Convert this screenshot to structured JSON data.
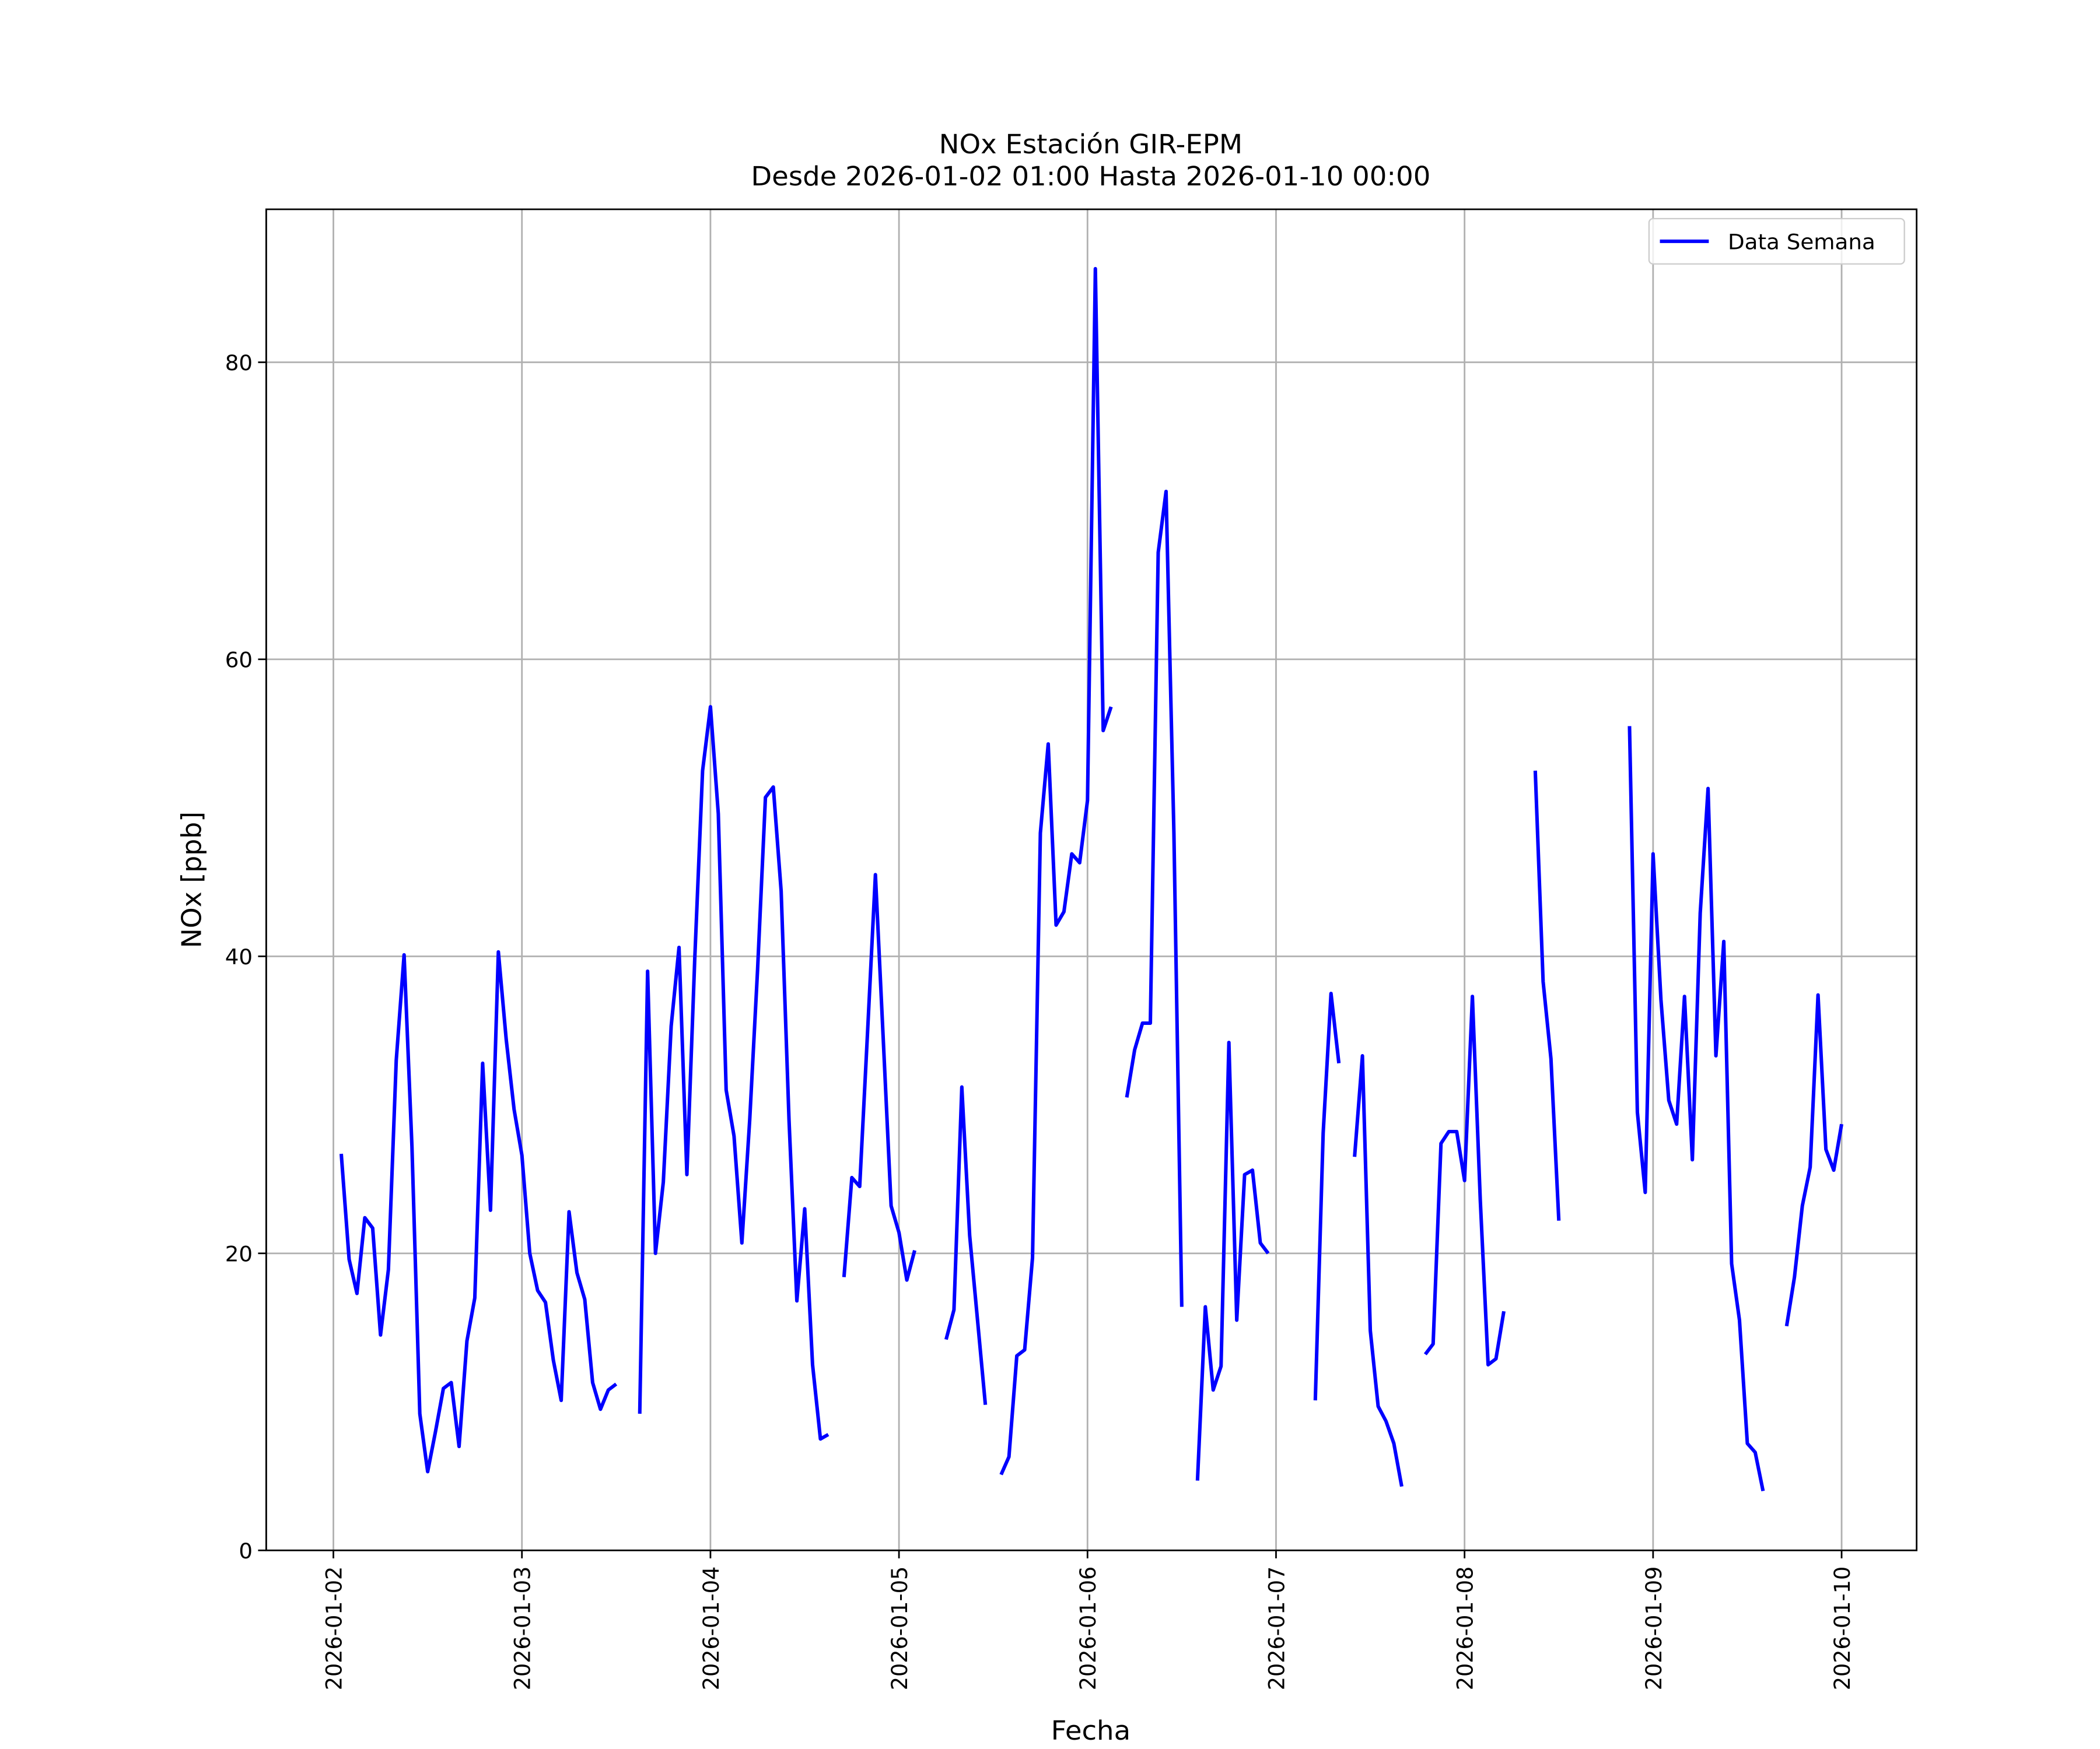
{
  "chart_data": {
    "type": "line",
    "title": "NOx Estación GIR-EPM",
    "subtitle": "Desde 2026-01-02 01:00 Hasta 2026-01-10 00:00",
    "xlabel": "Fecha",
    "ylabel": "NOx [ppb]",
    "x": [
      "2026-01-02 01:00",
      "2026-01-02 02:00",
      "2026-01-02 03:00",
      "2026-01-02 04:00",
      "2026-01-02 05:00",
      "2026-01-02 06:00",
      "2026-01-02 07:00",
      "2026-01-02 08:00",
      "2026-01-02 09:00",
      "2026-01-02 10:00",
      "2026-01-02 11:00",
      "2026-01-02 12:00",
      "2026-01-02 13:00",
      "2026-01-02 14:00",
      "2026-01-02 15:00",
      "2026-01-02 16:00",
      "2026-01-02 17:00",
      "2026-01-02 18:00",
      "2026-01-02 19:00",
      "2026-01-02 20:00",
      "2026-01-02 21:00",
      "2026-01-02 22:00",
      "2026-01-02 23:00",
      "2026-01-03 00:00",
      "2026-01-03 01:00",
      "2026-01-03 02:00",
      "2026-01-03 03:00",
      "2026-01-03 04:00",
      "2026-01-03 05:00",
      "2026-01-03 06:00",
      "2026-01-03 07:00",
      "2026-01-03 08:00",
      "2026-01-03 09:00",
      "2026-01-03 10:00",
      "2026-01-03 11:00",
      "2026-01-03 12:00",
      "2026-01-03 13:00",
      "2026-01-03 14:00",
      "2026-01-03 15:00",
      "2026-01-03 16:00",
      "2026-01-03 17:00",
      "2026-01-03 18:00",
      "2026-01-03 19:00",
      "2026-01-03 20:00",
      "2026-01-03 21:00",
      "2026-01-03 22:00",
      "2026-01-03 23:00",
      "2026-01-04 00:00",
      "2026-01-04 01:00",
      "2026-01-04 02:00",
      "2026-01-04 03:00",
      "2026-01-04 04:00",
      "2026-01-04 05:00",
      "2026-01-04 06:00",
      "2026-01-04 07:00",
      "2026-01-04 08:00",
      "2026-01-04 09:00",
      "2026-01-04 10:00",
      "2026-01-04 11:00",
      "2026-01-04 12:00",
      "2026-01-04 13:00",
      "2026-01-04 14:00",
      "2026-01-04 15:00",
      "2026-01-04 16:00",
      "2026-01-04 17:00",
      "2026-01-04 18:00",
      "2026-01-04 19:00",
      "2026-01-04 20:00",
      "2026-01-04 21:00",
      "2026-01-04 22:00",
      "2026-01-04 23:00",
      "2026-01-05 00:00",
      "2026-01-05 01:00",
      "2026-01-05 02:00",
      "2026-01-05 03:00",
      "2026-01-05 04:00",
      "2026-01-05 05:00",
      "2026-01-05 06:00",
      "2026-01-05 07:00",
      "2026-01-05 08:00",
      "2026-01-05 09:00",
      "2026-01-05 10:00",
      "2026-01-05 11:00",
      "2026-01-05 12:00",
      "2026-01-05 13:00",
      "2026-01-05 14:00",
      "2026-01-05 15:00",
      "2026-01-05 16:00",
      "2026-01-05 17:00",
      "2026-01-05 18:00",
      "2026-01-05 19:00",
      "2026-01-05 20:00",
      "2026-01-05 21:00",
      "2026-01-05 22:00",
      "2026-01-05 23:00",
      "2026-01-06 00:00",
      "2026-01-06 01:00",
      "2026-01-06 02:00",
      "2026-01-06 03:00",
      "2026-01-06 04:00",
      "2026-01-06 05:00",
      "2026-01-06 06:00",
      "2026-01-06 07:00",
      "2026-01-06 08:00",
      "2026-01-06 09:00",
      "2026-01-06 10:00",
      "2026-01-06 11:00",
      "2026-01-06 12:00",
      "2026-01-06 13:00",
      "2026-01-06 14:00",
      "2026-01-06 15:00",
      "2026-01-06 16:00",
      "2026-01-06 17:00",
      "2026-01-06 18:00",
      "2026-01-06 19:00",
      "2026-01-06 20:00",
      "2026-01-06 21:00",
      "2026-01-06 22:00",
      "2026-01-06 23:00",
      "2026-01-07 00:00",
      "2026-01-07 01:00",
      "2026-01-07 02:00",
      "2026-01-07 03:00",
      "2026-01-07 04:00",
      "2026-01-07 05:00",
      "2026-01-07 06:00",
      "2026-01-07 07:00",
      "2026-01-07 08:00",
      "2026-01-07 09:00",
      "2026-01-07 10:00",
      "2026-01-07 11:00",
      "2026-01-07 12:00",
      "2026-01-07 13:00",
      "2026-01-07 14:00",
      "2026-01-07 15:00",
      "2026-01-07 16:00",
      "2026-01-07 17:00",
      "2026-01-07 18:00",
      "2026-01-07 19:00",
      "2026-01-07 20:00",
      "2026-01-07 21:00",
      "2026-01-07 22:00",
      "2026-01-07 23:00",
      "2026-01-08 00:00",
      "2026-01-08 01:00",
      "2026-01-08 02:00",
      "2026-01-08 03:00",
      "2026-01-08 04:00",
      "2026-01-08 05:00",
      "2026-01-08 06:00",
      "2026-01-08 07:00",
      "2026-01-08 08:00",
      "2026-01-08 09:00",
      "2026-01-08 10:00",
      "2026-01-08 11:00",
      "2026-01-08 12:00",
      "2026-01-08 13:00",
      "2026-01-08 14:00",
      "2026-01-08 15:00",
      "2026-01-08 16:00",
      "2026-01-08 17:00",
      "2026-01-08 18:00",
      "2026-01-08 19:00",
      "2026-01-08 20:00",
      "2026-01-08 21:00",
      "2026-01-08 22:00",
      "2026-01-08 23:00",
      "2026-01-09 00:00",
      "2026-01-09 01:00",
      "2026-01-09 02:00",
      "2026-01-09 03:00",
      "2026-01-09 04:00",
      "2026-01-09 05:00",
      "2026-01-09 06:00",
      "2026-01-09 07:00",
      "2026-01-09 08:00",
      "2026-01-09 09:00",
      "2026-01-09 10:00",
      "2026-01-09 11:00",
      "2026-01-09 12:00",
      "2026-01-09 13:00",
      "2026-01-09 14:00",
      "2026-01-09 15:00",
      "2026-01-09 16:00",
      "2026-01-09 17:00",
      "2026-01-09 18:00",
      "2026-01-09 19:00",
      "2026-01-09 20:00",
      "2026-01-09 21:00",
      "2026-01-09 22:00",
      "2026-01-09 23:00",
      "2026-01-10 00:00"
    ],
    "series": [
      {
        "name": "Data Semana",
        "color": "#0000ff",
        "values": [
          26.7,
          19.6,
          17.3,
          22.4,
          21.7,
          14.5,
          18.9,
          33,
          40.1,
          27.2,
          9.2,
          5.3,
          8,
          10.9,
          11.3,
          7,
          14.1,
          17,
          32.8,
          22.9,
          40.3,
          34.4,
          29.7,
          26.6,
          20,
          17.5,
          16.7,
          12.8,
          10.1,
          22.8,
          18.7,
          16.9,
          11.3,
          9.5,
          10.8,
          11.2,
          null,
          null,
          9.2,
          39,
          20,
          24.8,
          35.3,
          40.6,
          25.3,
          39.8,
          52.5,
          56.8,
          49.6,
          31,
          27.9,
          20.7,
          29,
          39.1,
          50.7,
          51.4,
          44.4,
          29,
          16.8,
          23,
          12.5,
          7.5,
          7.8,
          null,
          18.4,
          25.1,
          24.5,
          34.9,
          45.5,
          34.4,
          23.2,
          21.4,
          18.2,
          20.2,
          null,
          null,
          null,
          14.2,
          16.2,
          31.2,
          21.2,
          15.5,
          9.8,
          null,
          5.1,
          6.3,
          13.1,
          13.5,
          19.7,
          48.3,
          54.3,
          42.1,
          43,
          46.9,
          46.3,
          50.5,
          86.3,
          55.2,
          56.8,
          null,
          30.5,
          33.7,
          35.5,
          35.5,
          67.2,
          71.3,
          48.3,
          16.4,
          null,
          4.7,
          16.4,
          10.8,
          12.4,
          34.2,
          15.5,
          25.3,
          25.6,
          20.7,
          20,
          null,
          null,
          null,
          null,
          null,
          10.1,
          28.1,
          37.5,
          32.8,
          null,
          26.5,
          33.3,
          14.8,
          9.7,
          8.7,
          7.2,
          4.3,
          null,
          null,
          13.2,
          13.9,
          27.4,
          28.2,
          28.2,
          24.9,
          37.3,
          23.6,
          12.5,
          12.9,
          16.1,
          null,
          null,
          null,
          52.5,
          38.3,
          33.1,
          22.2,
          null,
          null,
          null,
          null,
          null,
          null,
          null,
          null,
          55.5,
          29.5,
          24.1,
          46.9,
          37.1,
          30.3,
          28.7,
          37.3,
          26.3,
          42.9,
          51.3,
          33.3,
          41,
          19.3,
          15.5,
          7.2,
          6.6,
          4,
          null,
          null,
          15.1,
          18.4,
          23.2,
          25.8,
          37.4,
          27,
          25.6,
          28.7
        ]
      }
    ],
    "xlim": [
      "2026-01-01 15:27",
      "2026-01-10 09:33"
    ],
    "xticks": [
      "2026-01-02",
      "2026-01-03",
      "2026-01-04",
      "2026-01-05",
      "2026-01-06",
      "2026-01-07",
      "2026-01-08",
      "2026-01-09",
      "2026-01-10"
    ],
    "ylim": [
      0,
      90.3
    ],
    "yticks": [
      0,
      20,
      40,
      60,
      80
    ],
    "grid": true,
    "legend": "upper right"
  }
}
